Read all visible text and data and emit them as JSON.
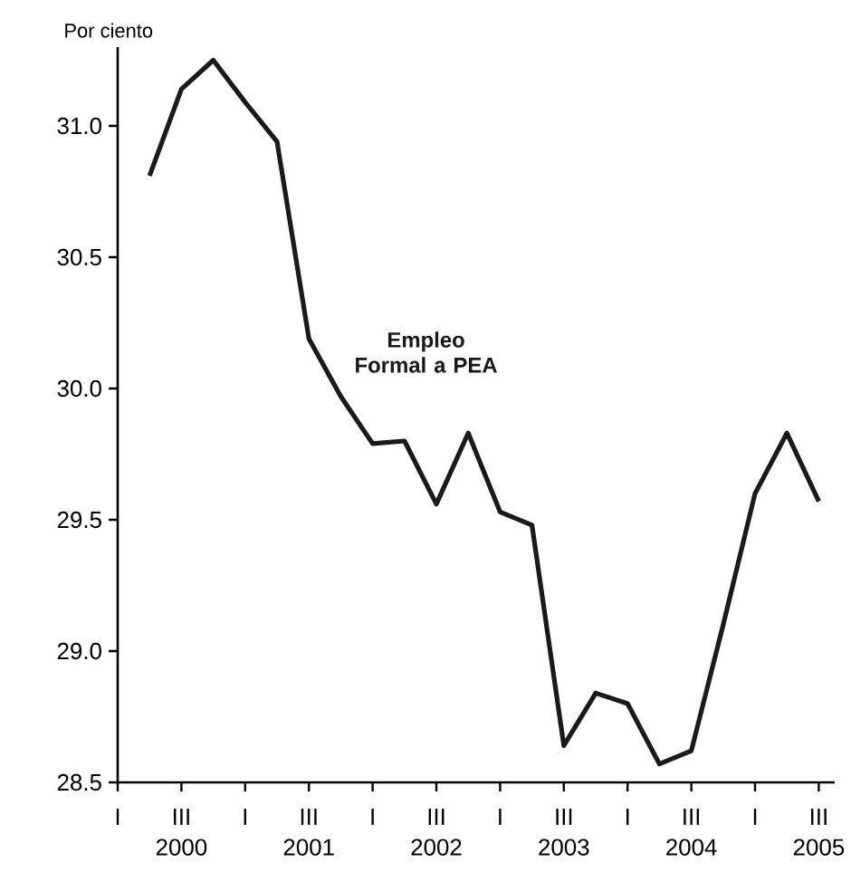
{
  "chart_data": {
    "type": "line",
    "ylabel": "Por ciento",
    "categories": [
      "I",
      null,
      "III",
      null,
      "I",
      null,
      "III",
      null,
      "I",
      null,
      "III",
      null,
      "I",
      null,
      "III",
      null,
      "I",
      null,
      "III",
      null,
      "I",
      null,
      "III"
    ],
    "series": [
      {
        "name": "Empleo Formal a PEA",
        "color": "#1a1a1a",
        "values": [
          null,
          30.81,
          31.14,
          31.25,
          31.09,
          30.94,
          30.19,
          29.97,
          29.79,
          29.8,
          29.56,
          29.83,
          29.53,
          29.48,
          28.64,
          28.84,
          28.8,
          28.57,
          28.62,
          29.1,
          29.6,
          29.83,
          29.57
        ]
      }
    ],
    "ylim": [
      28.5,
      31.3
    ],
    "yticks": [
      {
        "value": 28.5,
        "label": "28.5"
      },
      {
        "value": 29,
        "label": "29.0"
      },
      {
        "value": 29.5,
        "label": "29.5"
      },
      {
        "value": 30,
        "label": "30.0"
      },
      {
        "value": 30.5,
        "label": "30.5"
      },
      {
        "value": 31,
        "label": "31.0"
      }
    ],
    "annotations": [
      "2000",
      "2001",
      "2002",
      "2003",
      "2004",
      "2005"
    ],
    "grid": false,
    "legend": false,
    "marker": "none",
    "line_style": "solid"
  }
}
